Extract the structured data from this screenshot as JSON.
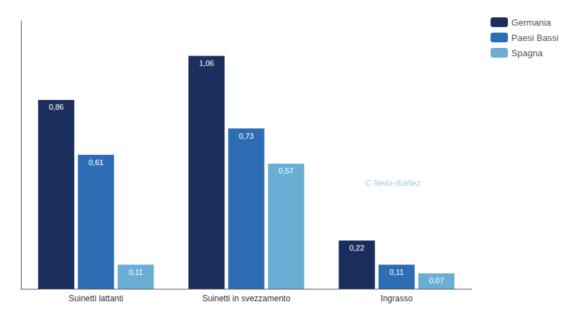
{
  "chart_data": {
    "type": "bar",
    "categories": [
      "Suinetti lattanti",
      "Suinetti in svezzamento",
      "Ingrasso"
    ],
    "series": [
      {
        "name": "Germania",
        "color": "#1b2f5e",
        "values": [
          0.86,
          1.06,
          0.22
        ],
        "value_labels": [
          "0,86",
          "1,06",
          "0,22"
        ]
      },
      {
        "name": "Paesi Bassi",
        "color": "#2e6db4",
        "values": [
          0.61,
          0.73,
          0.11
        ],
        "value_labels": [
          "0,61",
          "0,73",
          "0,11"
        ]
      },
      {
        "name": "Spagna",
        "color": "#6aaed6",
        "values": [
          0.11,
          0.57,
          0.07
        ],
        "value_labels": [
          "0,11",
          "0,57",
          "0,07"
        ]
      }
    ],
    "ylim": [
      0,
      1.22
    ],
    "yticks": [],
    "grid": false,
    "legend": "upper right",
    "data_labels": true,
    "tick_labels": "x",
    "annotations": [
      {
        "text": "C Neila-Ibáñez",
        "color": "#b0cce0"
      }
    ]
  }
}
